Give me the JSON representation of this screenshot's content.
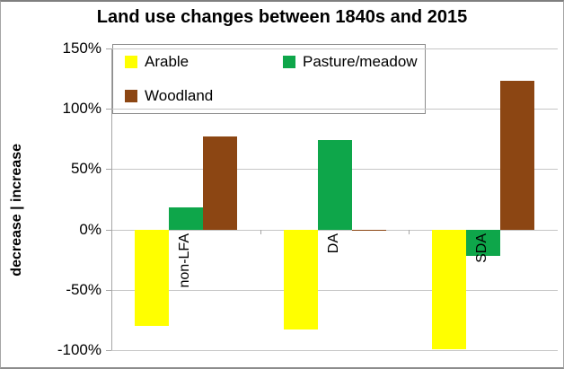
{
  "title": "Land use changes between 1840s and 2015",
  "y_axis": {
    "title": "decrease  |  increase",
    "tick_labels": [
      "150%",
      "100%",
      "50%",
      "0%",
      "-50%",
      "-100%"
    ]
  },
  "chart_data": {
    "type": "bar",
    "title": "Land use changes between 1840s and 2015",
    "categories": [
      "non-LFA",
      "DA",
      "SDA"
    ],
    "series": [
      {
        "name": "Arable",
        "color": "#FFFF00",
        "values": [
          -80,
          -83,
          -99
        ]
      },
      {
        "name": "Pasture/meadow",
        "color": "#0EA64A",
        "values": [
          18,
          74,
          -22
        ]
      },
      {
        "name": "Woodland",
        "color": "#8C4613",
        "values": [
          77,
          -1,
          123
        ]
      }
    ],
    "xlabel": "",
    "ylabel": "decrease  |  increase",
    "ylim": [
      -100,
      150
    ],
    "yticks": [
      {
        "value": 150,
        "label": "150%"
      },
      {
        "value": 100,
        "label": "100%"
      },
      {
        "value": 50,
        "label": "50%"
      },
      {
        "value": 0,
        "label": "0%"
      },
      {
        "value": -50,
        "label": "-50%"
      },
      {
        "value": -100,
        "label": "-100%"
      }
    ],
    "grid": true,
    "legend_position": "inside-top-left"
  }
}
